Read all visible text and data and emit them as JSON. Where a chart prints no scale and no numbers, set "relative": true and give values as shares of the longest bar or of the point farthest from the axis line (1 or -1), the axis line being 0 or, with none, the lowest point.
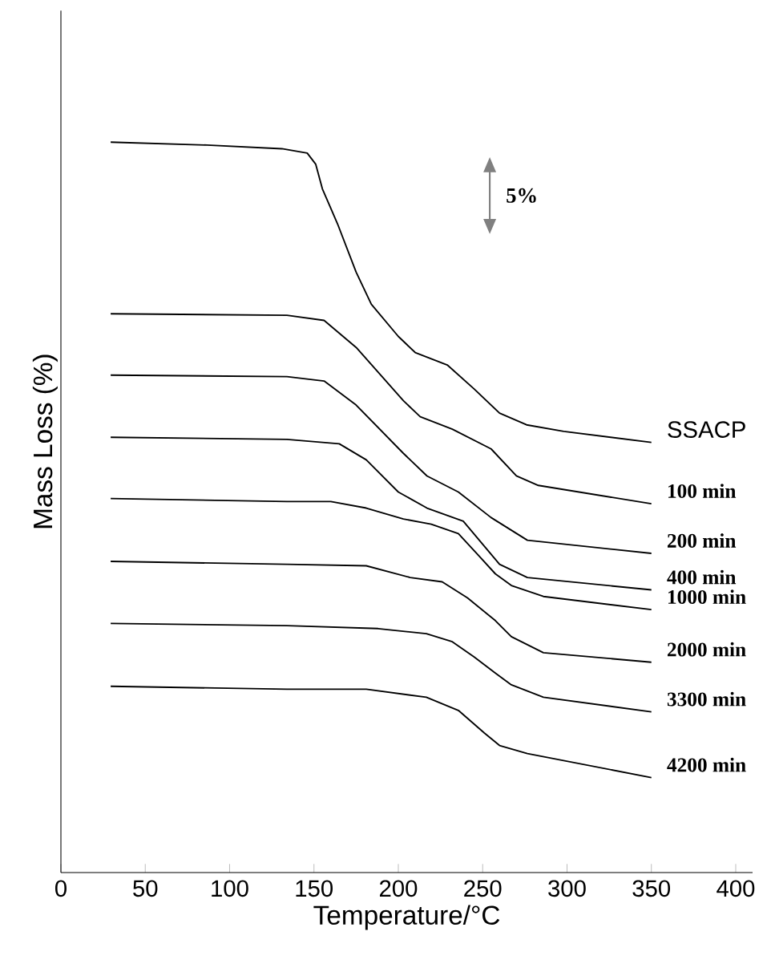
{
  "chart_data": {
    "type": "line",
    "relative": true,
    "xlabel": "Temperature/°C",
    "ylabel": "Mass Loss (%)",
    "xlim": [
      0,
      410
    ],
    "xticks": [
      0,
      50,
      100,
      150,
      200,
      250,
      300,
      350,
      400
    ],
    "annotations": [
      "5%"
    ],
    "grid": false,
    "marker": "none",
    "line_style": "solid",
    "series": [
      {
        "name": "SSACP",
        "color": "#000000",
        "x": [
          29.5,
          86.5,
          131,
          146,
          151,
          155,
          164,
          175,
          184,
          200,
          210,
          229,
          245,
          260,
          276,
          298,
          350
        ],
        "values": [
          1.0,
          0.996,
          0.991,
          0.985,
          0.97,
          0.936,
          0.888,
          0.822,
          0.778,
          0.734,
          0.712,
          0.695,
          0.662,
          0.629,
          0.613,
          0.604,
          0.589
        ]
      },
      {
        "name": "100 min",
        "color": "#000000",
        "x": [
          29.5,
          134,
          156,
          175,
          203,
          213,
          232,
          255,
          270,
          283,
          350
        ],
        "values": [
          0.765,
          0.763,
          0.756,
          0.719,
          0.646,
          0.624,
          0.607,
          0.58,
          0.543,
          0.53,
          0.505
        ]
      },
      {
        "name": "200 min",
        "color": "#000000",
        "x": [
          29.5,
          134,
          156,
          175,
          203,
          217,
          235.6,
          255,
          276.5,
          350
        ],
        "values": [
          0.681,
          0.679,
          0.673,
          0.64,
          0.574,
          0.543,
          0.521,
          0.486,
          0.455,
          0.437
        ]
      },
      {
        "name": "400 min",
        "color": "#000000",
        "x": [
          29.5,
          134,
          165,
          181,
          200,
          217,
          238.5,
          248,
          260,
          276.5,
          350
        ],
        "values": [
          0.596,
          0.593,
          0.587,
          0.565,
          0.521,
          0.499,
          0.481,
          0.455,
          0.422,
          0.404,
          0.387
        ]
      },
      {
        "name": "1000 min",
        "color": "#000000",
        "x": [
          29.5,
          134,
          160,
          181,
          203,
          219.5,
          235.6,
          248,
          257.5,
          267,
          286,
          350
        ],
        "values": [
          0.512,
          0.508,
          0.508,
          0.499,
          0.484,
          0.477,
          0.464,
          0.433,
          0.409,
          0.393,
          0.378,
          0.36
        ]
      },
      {
        "name": "2000 min",
        "color": "#000000",
        "x": [
          29.5,
          134,
          181,
          207,
          226,
          241,
          257.5,
          267,
          286,
          350
        ],
        "values": [
          0.426,
          0.422,
          0.42,
          0.404,
          0.398,
          0.376,
          0.345,
          0.323,
          0.301,
          0.288
        ]
      },
      {
        "name": "3300 min",
        "color": "#000000",
        "x": [
          29.5,
          134,
          188,
          216.6,
          232,
          245,
          257.5,
          267,
          286,
          350
        ],
        "values": [
          0.341,
          0.338,
          0.334,
          0.327,
          0.316,
          0.295,
          0.273,
          0.257,
          0.24,
          0.22
        ]
      },
      {
        "name": "4200 min",
        "color": "#000000",
        "x": [
          29.5,
          134,
          181,
          216.6,
          235.6,
          251,
          260,
          276.5,
          350
        ],
        "values": [
          0.255,
          0.251,
          0.251,
          0.24,
          0.222,
          0.191,
          0.174,
          0.163,
          0.13
        ]
      }
    ]
  }
}
